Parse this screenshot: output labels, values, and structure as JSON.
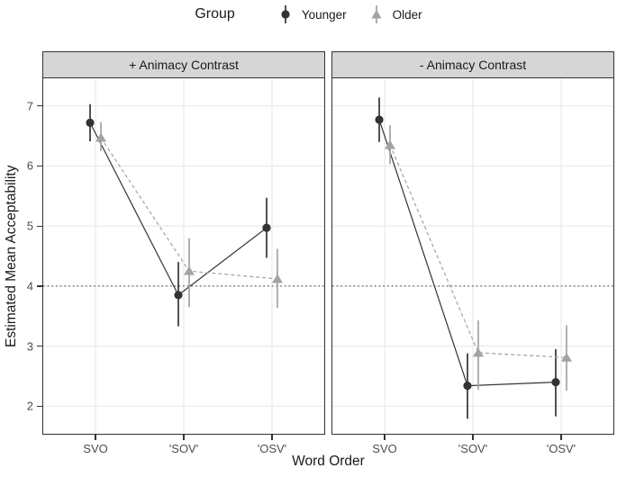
{
  "legend": {
    "title": "Group",
    "items": [
      {
        "label": "Younger",
        "shape": "circle",
        "color": "#333333"
      },
      {
        "label": "Older",
        "shape": "triangle",
        "color": "#a3a3a3"
      }
    ]
  },
  "chart_data": {
    "type": "line",
    "subtype": "pointrange-with-error-bars, faceted",
    "title": "",
    "xlabel": "Word Order",
    "ylabel": "Estimated Mean Acceptability",
    "categories": [
      "SVO",
      "'SOV'",
      "'OSV'"
    ],
    "y_ticks": [
      2,
      3,
      4,
      5,
      6,
      7
    ],
    "ylim": [
      1.54,
      7.46
    ],
    "grid": "major-only",
    "legend_position": "top",
    "reference_line": {
      "y": 4,
      "style": "dotted"
    },
    "facets": [
      {
        "label": "+ Animacy Contrast",
        "series": [
          {
            "name": "Younger",
            "color": "#333333",
            "shape": "circle",
            "line": "solid",
            "points": [
              {
                "x": "SVO",
                "y": 6.72,
                "ymin": 6.41,
                "ymax": 7.03
              },
              {
                "x": "'SOV'",
                "y": 3.85,
                "ymin": 3.33,
                "ymax": 4.4
              },
              {
                "x": "'OSV'",
                "y": 4.97,
                "ymin": 4.47,
                "ymax": 5.47
              }
            ]
          },
          {
            "name": "Older",
            "color": "#a3a3a3",
            "shape": "triangle",
            "line": "dashed",
            "points": [
              {
                "x": "SVO",
                "y": 6.47,
                "ymin": 6.25,
                "ymax": 6.73
              },
              {
                "x": "'SOV'",
                "y": 4.25,
                "ymin": 3.65,
                "ymax": 4.8
              },
              {
                "x": "'OSV'",
                "y": 4.12,
                "ymin": 3.64,
                "ymax": 4.62
              }
            ]
          }
        ]
      },
      {
        "label": "- Animacy Contrast",
        "series": [
          {
            "name": "Younger",
            "color": "#333333",
            "shape": "circle",
            "line": "solid",
            "points": [
              {
                "x": "SVO",
                "y": 6.77,
                "ymin": 6.4,
                "ymax": 7.14
              },
              {
                "x": "'SOV'",
                "y": 2.34,
                "ymin": 1.79,
                "ymax": 2.88
              },
              {
                "x": "'OSV'",
                "y": 2.4,
                "ymin": 1.83,
                "ymax": 2.95
              }
            ]
          },
          {
            "name": "Older",
            "color": "#a3a3a3",
            "shape": "triangle",
            "line": "dashed",
            "points": [
              {
                "x": "SVO",
                "y": 6.35,
                "ymin": 6.03,
                "ymax": 6.68
              },
              {
                "x": "'SOV'",
                "y": 2.89,
                "ymin": 2.27,
                "ymax": 3.43
              },
              {
                "x": "'OSV'",
                "y": 2.81,
                "ymin": 2.26,
                "ymax": 3.35
              }
            ]
          }
        ]
      }
    ],
    "colors": {
      "younger": "#333333",
      "older": "#a3a3a3",
      "grid": "#ebebeb",
      "panel_border": "#333333",
      "strip_bg": "#d6d6d6",
      "axis_text": "#4d4d4d",
      "reference_line": "#333333"
    }
  }
}
